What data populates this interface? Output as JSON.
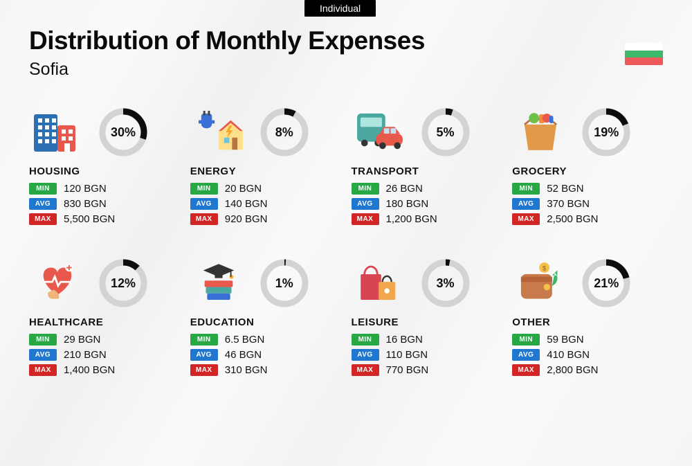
{
  "tag": "Individual",
  "title": "Distribution of Monthly Expenses",
  "subtitle": "Sofia",
  "flag_colors": {
    "top": "#ffffff",
    "mid": "#3db868",
    "bot": "#ee5a5a"
  },
  "currency": "BGN",
  "labels": {
    "min": "MIN",
    "avg": "AVG",
    "max": "MAX"
  },
  "badge_colors": {
    "min": "#27a845",
    "avg": "#1f77d0",
    "max": "#d22525"
  },
  "donut": {
    "ring_bg": "#d2d3d4",
    "ring_fg": "#0d0d0d",
    "stroke_width": 9,
    "radius": 30,
    "label_fontsize": 18,
    "label_color": "#111111"
  },
  "background_gradient": [
    "#f5f5f5",
    "#fafafa",
    "#f0f0f0"
  ],
  "categories": [
    {
      "key": "housing",
      "title": "HOUSING",
      "percent": 30,
      "min": "120",
      "avg": "830",
      "max": "5,500"
    },
    {
      "key": "energy",
      "title": "ENERGY",
      "percent": 8,
      "min": "20",
      "avg": "140",
      "max": "920"
    },
    {
      "key": "transport",
      "title": "TRANSPORT",
      "percent": 5,
      "min": "26",
      "avg": "180",
      "max": "1,200"
    },
    {
      "key": "grocery",
      "title": "GROCERY",
      "percent": 19,
      "min": "52",
      "avg": "370",
      "max": "2,500"
    },
    {
      "key": "healthcare",
      "title": "HEALTHCARE",
      "percent": 12,
      "min": "29",
      "avg": "210",
      "max": "1,400"
    },
    {
      "key": "education",
      "title": "EDUCATION",
      "percent": 1,
      "min": "6.5",
      "avg": "46",
      "max": "310"
    },
    {
      "key": "leisure",
      "title": "LEISURE",
      "percent": 3,
      "min": "16",
      "avg": "110",
      "max": "770"
    },
    {
      "key": "other",
      "title": "OTHER",
      "percent": 21,
      "min": "59",
      "avg": "410",
      "max": "2,800"
    }
  ]
}
